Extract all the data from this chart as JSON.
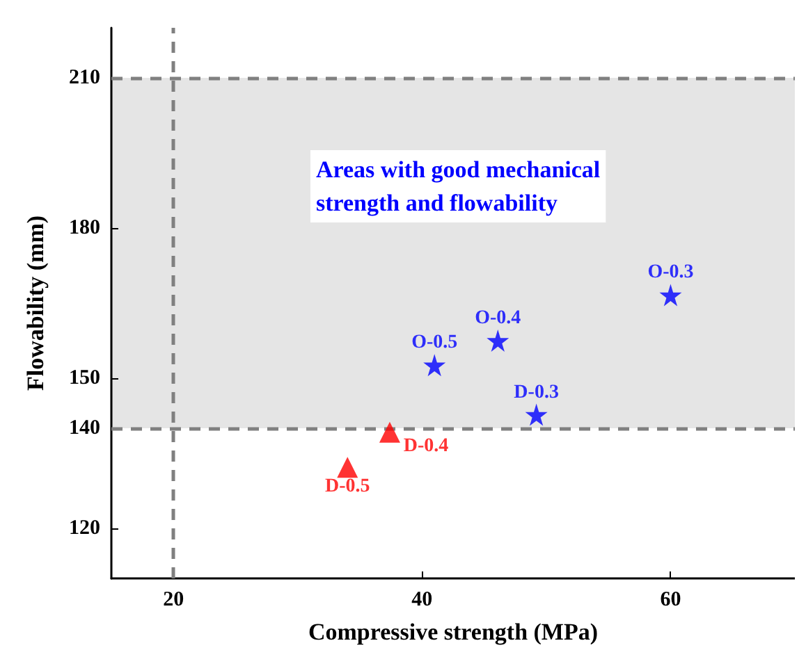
{
  "chart_data": {
    "type": "scatter",
    "xlabel": "Compressive strength (MPa)",
    "ylabel": "Flowability (mm)",
    "xlim": [
      15,
      70
    ],
    "xticks": [
      20,
      40,
      60
    ],
    "ylim": [
      110,
      220
    ],
    "yticks": [
      120,
      140,
      150,
      180,
      210
    ],
    "grid": false,
    "series": [
      {
        "color": "#0000ff",
        "marker": "star",
        "x": [
          60,
          46.1,
          41,
          49.2
        ],
        "values": [
          166.6,
          157.5,
          152.6,
          142.7
        ]
      },
      {
        "color": "#ff0000",
        "marker": "triangle",
        "x": [
          37.4,
          34
        ],
        "values": [
          139.2,
          132.2
        ]
      }
    ],
    "ref_lines": [
      {
        "axis": "x",
        "value": 20,
        "color": "#808080",
        "line_style": "dashed"
      },
      {
        "axis": "y",
        "value": 140,
        "color": "#808080",
        "line_style": "dashed"
      },
      {
        "axis": "y",
        "value": 210,
        "color": "#808080",
        "line_style": "dashed"
      }
    ],
    "bands": [
      {
        "axis": "y",
        "from": 140,
        "to": 210,
        "color": "#e5e5e5"
      }
    ],
    "annotations": [
      "Areas with good mechanical strength and flowability",
      {
        "text": "O-0.3",
        "x": 60,
        "y": 166.6
      },
      {
        "text": "O-0.4",
        "x": 46.1,
        "y": 157.5
      },
      {
        "text": "O-0.5",
        "x": 41,
        "y": 152.6
      },
      {
        "text": "D-0.3",
        "x": 49.2,
        "y": 142.7
      },
      {
        "text": "D-0.4",
        "x": 37.4,
        "y": 139.2
      },
      {
        "text": "D-0.5",
        "x": 34,
        "y": 132.2
      }
    ]
  }
}
